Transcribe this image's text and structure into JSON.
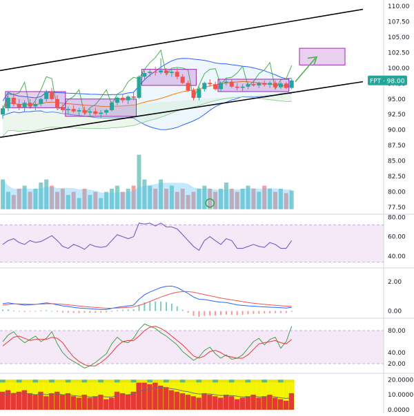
{
  "symbol_badge": {
    "symbol": "FPT",
    "price": "98.00",
    "label": "FPT · 98.00",
    "color": "#26a69a"
  },
  "colors": {
    "up": "#26a69a",
    "down": "#ef5350",
    "bb_upper": "#2962ff",
    "bb_lower": "#2962ff",
    "bb_basis": "#f57c00",
    "bb_fill": "#2196f3",
    "ichimoku_span": "#4caf50",
    "trend": "#000000",
    "box": "#9c27b0",
    "rsi": "#7e57c2",
    "macd": "#2962ff",
    "signal": "#ef5350",
    "stoch_k": "#43a047",
    "stoch_d": "#e53935",
    "band_fill": "#e1bee7",
    "arrow": "#4caf50"
  },
  "chart_data": [
    {
      "type": "candlestick",
      "pane": "price",
      "y_ticks": [
        "110.00",
        "107.50",
        "105.00",
        "102.50",
        "100.00",
        "97.50",
        "95.00",
        "92.50",
        "90.00",
        "87.50",
        "85.00",
        "82.50",
        "80.00",
        "77.50"
      ],
      "ylim": [
        76.5,
        111
      ],
      "n": 54,
      "candles": [
        [
          92.5,
          94.0,
          91.8,
          93.5
        ],
        [
          93.5,
          95.5,
          93.0,
          95.2
        ],
        [
          95.2,
          96.0,
          93.8,
          94.2
        ],
        [
          94.2,
          95.0,
          93.2,
          93.6
        ],
        [
          93.6,
          94.8,
          93.0,
          94.4
        ],
        [
          94.4,
          95.0,
          93.6,
          93.8
        ],
        [
          93.8,
          94.6,
          93.2,
          94.2
        ],
        [
          94.2,
          95.2,
          93.8,
          95.0
        ],
        [
          95.0,
          96.5,
          94.6,
          96.2
        ],
        [
          96.2,
          96.8,
          94.8,
          95.0
        ],
        [
          95.0,
          95.6,
          93.2,
          93.6
        ],
        [
          93.6,
          94.2,
          92.8,
          93.2
        ],
        [
          93.2,
          93.8,
          92.6,
          93.4
        ],
        [
          93.4,
          94.0,
          92.8,
          93.0
        ],
        [
          93.0,
          93.6,
          92.4,
          93.2
        ],
        [
          93.2,
          93.8,
          92.6,
          92.8
        ],
        [
          92.8,
          93.4,
          92.2,
          93.0
        ],
        [
          93.0,
          93.6,
          92.4,
          92.6
        ],
        [
          92.6,
          93.2,
          92.0,
          92.8
        ],
        [
          92.8,
          93.4,
          92.4,
          93.2
        ],
        [
          93.2,
          94.6,
          93.0,
          94.4
        ],
        [
          94.4,
          95.4,
          94.0,
          95.2
        ],
        [
          95.2,
          95.8,
          94.4,
          94.8
        ],
        [
          94.8,
          95.6,
          94.2,
          95.4
        ],
        [
          95.4,
          96.0,
          94.8,
          95.2
        ],
        [
          95.2,
          98.8,
          95.0,
          98.6
        ],
        [
          98.6,
          99.6,
          98.0,
          99.2
        ],
        [
          99.2,
          99.8,
          98.6,
          99.4
        ],
        [
          99.4,
          100.2,
          98.8,
          99.3
        ],
        [
          99.3,
          101.6,
          99.0,
          99.6
        ],
        [
          99.6,
          100.0,
          98.8,
          99.2
        ],
        [
          99.2,
          99.8,
          98.6,
          99.4
        ],
        [
          99.4,
          100.0,
          98.2,
          98.6
        ],
        [
          98.6,
          99.0,
          97.4,
          97.6
        ],
        [
          97.6,
          98.0,
          96.2,
          96.4
        ],
        [
          96.4,
          96.8,
          94.8,
          95.2
        ],
        [
          95.2,
          97.0,
          94.8,
          96.6
        ],
        [
          96.6,
          97.8,
          96.2,
          97.6
        ],
        [
          97.6,
          98.2,
          97.0,
          97.4
        ],
        [
          97.4,
          97.8,
          96.4,
          96.6
        ],
        [
          96.6,
          97.8,
          96.2,
          97.6
        ],
        [
          97.6,
          98.4,
          97.2,
          97.8
        ],
        [
          97.8,
          98.2,
          96.8,
          97.0
        ],
        [
          97.0,
          97.6,
          96.4,
          96.8
        ],
        [
          96.8,
          97.4,
          96.2,
          97.0
        ],
        [
          97.0,
          97.6,
          96.6,
          97.4
        ],
        [
          97.4,
          98.0,
          97.0,
          97.2
        ],
        [
          97.2,
          97.8,
          96.8,
          97.6
        ],
        [
          97.6,
          98.0,
          97.0,
          97.3
        ],
        [
          97.3,
          97.9,
          96.8,
          97.6
        ],
        [
          97.6,
          98.0,
          96.6,
          96.9
        ],
        [
          96.9,
          97.8,
          96.6,
          97.5
        ],
        [
          97.5,
          97.8,
          96.6,
          96.8
        ],
        [
          96.8,
          98.2,
          96.6,
          98.0
        ]
      ],
      "volume": [
        82,
        80,
        79.5,
        80.5,
        81,
        80,
        80.5,
        81.5,
        82,
        81,
        80,
        80.5,
        79.5,
        80,
        79,
        80.5,
        79.5,
        80,
        79,
        80,
        80.5,
        81,
        80,
        80.5,
        81,
        86,
        82,
        81,
        80.5,
        82,
        80.5,
        81,
        80,
        80.5,
        79.5,
        80,
        80.5,
        81,
        80.5,
        80,
        80.5,
        81.5,
        80.5,
        80,
        80.5,
        81,
        80.5,
        80,
        81,
        80.5,
        80,
        80.5,
        79.8,
        80.2
      ]
    },
    {
      "type": "line",
      "pane": "rsi",
      "y_ticks": [
        "80.00",
        "60.00",
        "40.00"
      ],
      "ylim": [
        30,
        81
      ],
      "band": [
        34,
        72
      ],
      "values": [
        52,
        56,
        58,
        54,
        52,
        56,
        54,
        55,
        58,
        61,
        56,
        50,
        48,
        52,
        50,
        47,
        52,
        50,
        49,
        50,
        56,
        62,
        60,
        58,
        60,
        74,
        73,
        74,
        71,
        74,
        70,
        70,
        68,
        62,
        56,
        50,
        46,
        56,
        60,
        56,
        52,
        58,
        56,
        48,
        48,
        50,
        52,
        50,
        49,
        54,
        52,
        48,
        48,
        56
      ]
    },
    {
      "type": "line",
      "pane": "macd",
      "y_ticks": [
        "2.00",
        "0.00"
      ],
      "ylim": [
        -0.4,
        2.8
      ],
      "macd": [
        0.5,
        0.55,
        0.5,
        0.45,
        0.4,
        0.42,
        0.45,
        0.5,
        0.55,
        0.5,
        0.42,
        0.35,
        0.3,
        0.25,
        0.2,
        0.18,
        0.15,
        0.12,
        0.1,
        0.1,
        0.18,
        0.25,
        0.3,
        0.35,
        0.4,
        0.8,
        1.1,
        1.3,
        1.45,
        1.6,
        1.68,
        1.7,
        1.6,
        1.4,
        1.2,
        0.95,
        0.8,
        0.78,
        0.72,
        0.65,
        0.6,
        0.58,
        0.5,
        0.42,
        0.38,
        0.35,
        0.33,
        0.3,
        0.28,
        0.26,
        0.25,
        0.22,
        0.2,
        0.25
      ],
      "signal": [
        0.4,
        0.45,
        0.48,
        0.48,
        0.47,
        0.46,
        0.46,
        0.47,
        0.49,
        0.5,
        0.48,
        0.46,
        0.42,
        0.38,
        0.34,
        0.3,
        0.27,
        0.24,
        0.21,
        0.19,
        0.19,
        0.2,
        0.22,
        0.25,
        0.28,
        0.38,
        0.5,
        0.65,
        0.8,
        0.95,
        1.08,
        1.2,
        1.28,
        1.32,
        1.32,
        1.28,
        1.2,
        1.12,
        1.04,
        0.96,
        0.88,
        0.82,
        0.76,
        0.7,
        0.64,
        0.58,
        0.53,
        0.49,
        0.45,
        0.42,
        0.39,
        0.36,
        0.33,
        0.31
      ],
      "histogram": [
        0.1,
        0.1,
        0.02,
        -0.03,
        -0.07,
        -0.04,
        -0.01,
        0.03,
        0.06,
        0,
        -0.06,
        -0.11,
        -0.12,
        -0.13,
        -0.14,
        -0.12,
        -0.12,
        -0.12,
        -0.11,
        -0.09,
        -0.01,
        0.05,
        0.08,
        0.1,
        0.12,
        0.42,
        0.6,
        0.65,
        0.65,
        0.65,
        0.6,
        0.5,
        0.32,
        0.08,
        -0.12,
        -0.33,
        -0.4,
        -0.34,
        -0.32,
        -0.31,
        -0.28,
        -0.24,
        -0.26,
        -0.28,
        -0.26,
        -0.23,
        -0.2,
        -0.19,
        -0.17,
        -0.16,
        -0.14,
        -0.14,
        -0.13,
        -0.06
      ]
    },
    {
      "type": "line",
      "pane": "stochastic",
      "y_ticks": [
        "80.00",
        "40.00",
        "20.00"
      ],
      "ylim": [
        5,
        100
      ],
      "band": [
        20,
        80
      ],
      "k": [
        60,
        72,
        78,
        66,
        58,
        64,
        70,
        60,
        66,
        78,
        56,
        40,
        30,
        24,
        18,
        12,
        16,
        22,
        30,
        38,
        56,
        68,
        60,
        58,
        66,
        82,
        92,
        88,
        84,
        76,
        70,
        62,
        54,
        42,
        34,
        26,
        32,
        44,
        50,
        38,
        30,
        36,
        28,
        30,
        36,
        48,
        60,
        66,
        54,
        64,
        68,
        48,
        60,
        88
      ],
      "d": [
        52,
        60,
        68,
        70,
        66,
        62,
        64,
        64,
        64,
        68,
        66,
        58,
        44,
        32,
        24,
        18,
        16,
        16,
        22,
        30,
        40,
        52,
        60,
        62,
        62,
        70,
        80,
        86,
        88,
        84,
        78,
        70,
        62,
        54,
        44,
        34,
        30,
        34,
        42,
        44,
        40,
        34,
        32,
        30,
        30,
        36,
        46,
        56,
        58,
        60,
        62,
        58,
        56,
        64
      ]
    },
    {
      "type": "bar",
      "pane": "histogram",
      "y_ticks": [
        "20.0000",
        "10.0000",
        "0.0000"
      ],
      "ylim": [
        -0.5,
        21.5
      ],
      "bar_top": [
        20,
        20,
        20,
        20,
        20,
        20,
        20,
        20,
        20,
        20,
        20,
        20,
        20,
        20,
        20,
        20,
        20,
        20,
        20,
        20,
        20,
        20,
        20,
        20,
        20,
        20,
        20,
        20,
        20,
        20,
        20,
        20,
        20,
        20,
        20,
        20,
        20,
        20,
        20,
        20,
        20,
        20,
        20,
        20,
        20,
        20,
        20,
        20,
        20,
        20,
        20,
        20,
        20,
        20
      ],
      "red": [
        12,
        13,
        11,
        12,
        13,
        11,
        10,
        12,
        9,
        11,
        12,
        10,
        11,
        9,
        8,
        10,
        8,
        9,
        10,
        7,
        8,
        12,
        11,
        10,
        12,
        18,
        18,
        17,
        18,
        16,
        15,
        13,
        12,
        11,
        10,
        9,
        8,
        11,
        10,
        9,
        8,
        10,
        9,
        7,
        8,
        9,
        10,
        8,
        9,
        10,
        8,
        7,
        6,
        11
      ],
      "ma": [
        10,
        10.5,
        11,
        10.5,
        11,
        10.5,
        10,
        10.5,
        10,
        10.5,
        10.5,
        10,
        10,
        9.5,
        9,
        9,
        8.5,
        8.5,
        9,
        8.5,
        8.5,
        9.5,
        10,
        10,
        10.5,
        12,
        13,
        14,
        14.5,
        15,
        14.5,
        14,
        13.5,
        12.5,
        12,
        11,
        10.5,
        10.5,
        10.5,
        10,
        9.5,
        9.5,
        9.5,
        9,
        8.5,
        8.5,
        9,
        8.5,
        8.5,
        9,
        8.5,
        8,
        7.5,
        8
      ]
    }
  ]
}
